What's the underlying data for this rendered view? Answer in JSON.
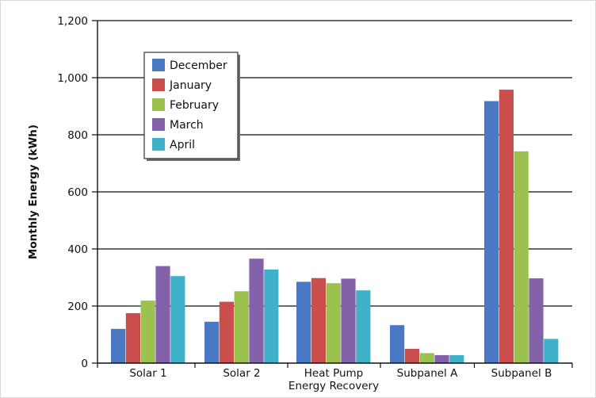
{
  "chart_data": {
    "type": "bar",
    "title": "",
    "xlabel": "",
    "ylabel": "Monthly Energy (kWh)",
    "ylim": [
      0,
      1200
    ],
    "yticks": [
      "0",
      "200",
      "400",
      "600",
      "800",
      "1,000",
      "1,200"
    ],
    "ytick_values": [
      0,
      200,
      400,
      600,
      800,
      1000,
      1200
    ],
    "categories": [
      [
        "Solar 1"
      ],
      [
        "Solar 2"
      ],
      [
        "Heat Pump",
        "Energy Recovery"
      ],
      [
        "Subpanel A"
      ],
      [
        "Subpanel B"
      ]
    ],
    "grid": true,
    "legend_position": "top-left",
    "series": [
      {
        "name": "December",
        "color": "#4a78c2",
        "values": [
          120,
          145,
          285,
          133,
          918
        ]
      },
      {
        "name": "January",
        "color": "#c94e4c",
        "values": [
          175,
          215,
          298,
          50,
          958
        ]
      },
      {
        "name": "February",
        "color": "#9bc14f",
        "values": [
          219,
          252,
          280,
          35,
          742
        ]
      },
      {
        "name": "March",
        "color": "#8362aa",
        "values": [
          340,
          366,
          296,
          28,
          297
        ]
      },
      {
        "name": "April",
        "color": "#3fb1c9",
        "values": [
          305,
          328,
          255,
          28,
          85
        ]
      }
    ]
  }
}
